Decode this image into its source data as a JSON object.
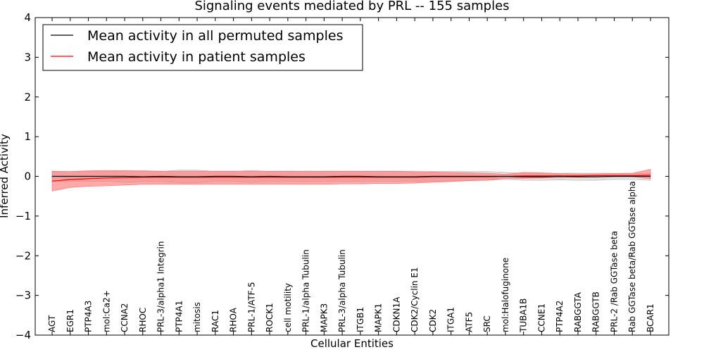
{
  "chart_data": {
    "type": "line",
    "title": "Signaling events mediated by PRL -- 155 samples",
    "xlabel": "Cellular Entities",
    "ylabel": "Inferred Activity",
    "ylim": [
      -4,
      4
    ],
    "yticks": [
      4,
      3,
      2,
      1,
      0,
      -1,
      -2,
      -3,
      -4
    ],
    "ytick_labels": [
      "4",
      "3",
      "2",
      "1",
      "0",
      "−1",
      "−2",
      "−3",
      "−4"
    ],
    "categories": [
      "AGT",
      "EGR1",
      "PTP4A3",
      "mol:Ca2+",
      "CCNA2",
      "RHOC",
      "PRL-3/alpha1 Integrin",
      "PTP4A1",
      "mitosis",
      "RAC1",
      "RHOA",
      "PRL-1/ATF-5",
      "ROCK1",
      "cell motility",
      "PRL-1/alpha Tubulin",
      "MAPK3",
      "PRL-3/alpha Tubulin",
      "ITGB1",
      "MAPK1",
      "CDKN1A",
      "CDK2/Cyclin E1",
      "CDK2",
      "ITGA1",
      "ATF5",
      "SRC",
      "mol:Halofuginone",
      "TUBA1B",
      "CCNE1",
      "PTP4A2",
      "RABGGTA",
      "RABGGTB",
      "PRL-2 /Rab GGTase beta",
      "Rab GGTase beta/Rab GGTase alpha",
      "BCAR1"
    ],
    "legend_position": "top-left",
    "series": [
      {
        "name": "Mean activity in all permuted samples",
        "color": "#000000",
        "band_color": "#b0b0b0",
        "mean": [
          0.0,
          0.0,
          0.0,
          0.0,
          0.0,
          -0.01,
          0.0,
          -0.01,
          -0.01,
          0.0,
          0.0,
          -0.01,
          0.0,
          -0.01,
          -0.01,
          -0.01,
          0.0,
          0.0,
          -0.01,
          -0.01,
          -0.01,
          0.0,
          0.0,
          0.0,
          0.0,
          0.0,
          -0.01,
          -0.01,
          0.0,
          -0.01,
          -0.01,
          0.0,
          0.0,
          0.0
        ],
        "upper": [
          0.12,
          0.12,
          0.12,
          0.12,
          0.15,
          0.13,
          0.12,
          0.16,
          0.16,
          0.12,
          0.12,
          0.15,
          0.12,
          0.12,
          0.13,
          0.12,
          0.12,
          0.12,
          0.12,
          0.12,
          0.12,
          0.12,
          0.12,
          0.12,
          0.12,
          0.1,
          0.08,
          0.08,
          0.08,
          0.08,
          0.08,
          0.08,
          0.08,
          0.08
        ],
        "lower": [
          -0.12,
          -0.12,
          -0.12,
          -0.12,
          -0.15,
          -0.13,
          -0.12,
          -0.16,
          -0.16,
          -0.12,
          -0.12,
          -0.15,
          -0.12,
          -0.12,
          -0.13,
          -0.12,
          -0.12,
          -0.12,
          -0.12,
          -0.12,
          -0.12,
          -0.12,
          -0.12,
          -0.1,
          -0.1,
          -0.08,
          -0.1,
          -0.1,
          -0.09,
          -0.1,
          -0.1,
          -0.08,
          -0.08,
          -0.1
        ]
      },
      {
        "name": "Mean activity in patient samples",
        "color": "#ff0000",
        "band_color": "#ff6f6f",
        "mean": [
          -0.12,
          -0.08,
          -0.06,
          -0.04,
          -0.03,
          -0.02,
          -0.02,
          -0.02,
          -0.02,
          -0.02,
          -0.02,
          -0.02,
          -0.02,
          -0.02,
          -0.02,
          -0.02,
          -0.02,
          -0.02,
          -0.02,
          -0.02,
          -0.02,
          -0.01,
          -0.01,
          -0.01,
          -0.01,
          0.0,
          0.01,
          0.01,
          0.01,
          0.01,
          0.02,
          0.02,
          0.02,
          0.03
        ],
        "upper": [
          0.13,
          0.12,
          0.14,
          0.15,
          0.14,
          0.14,
          0.13,
          0.13,
          0.13,
          0.13,
          0.13,
          0.13,
          0.13,
          0.13,
          0.13,
          0.13,
          0.13,
          0.13,
          0.13,
          0.13,
          0.12,
          0.11,
          0.1,
          0.09,
          0.08,
          0.05,
          0.1,
          0.09,
          0.07,
          0.06,
          0.06,
          0.07,
          0.08,
          0.18
        ],
        "lower": [
          -0.37,
          -0.28,
          -0.25,
          -0.24,
          -0.22,
          -0.2,
          -0.2,
          -0.2,
          -0.2,
          -0.2,
          -0.2,
          -0.2,
          -0.2,
          -0.2,
          -0.2,
          -0.2,
          -0.19,
          -0.19,
          -0.18,
          -0.18,
          -0.17,
          -0.15,
          -0.13,
          -0.11,
          -0.1,
          -0.05,
          -0.05,
          -0.04,
          -0.03,
          -0.02,
          -0.01,
          -0.01,
          -0.01,
          -0.06
        ]
      }
    ]
  }
}
